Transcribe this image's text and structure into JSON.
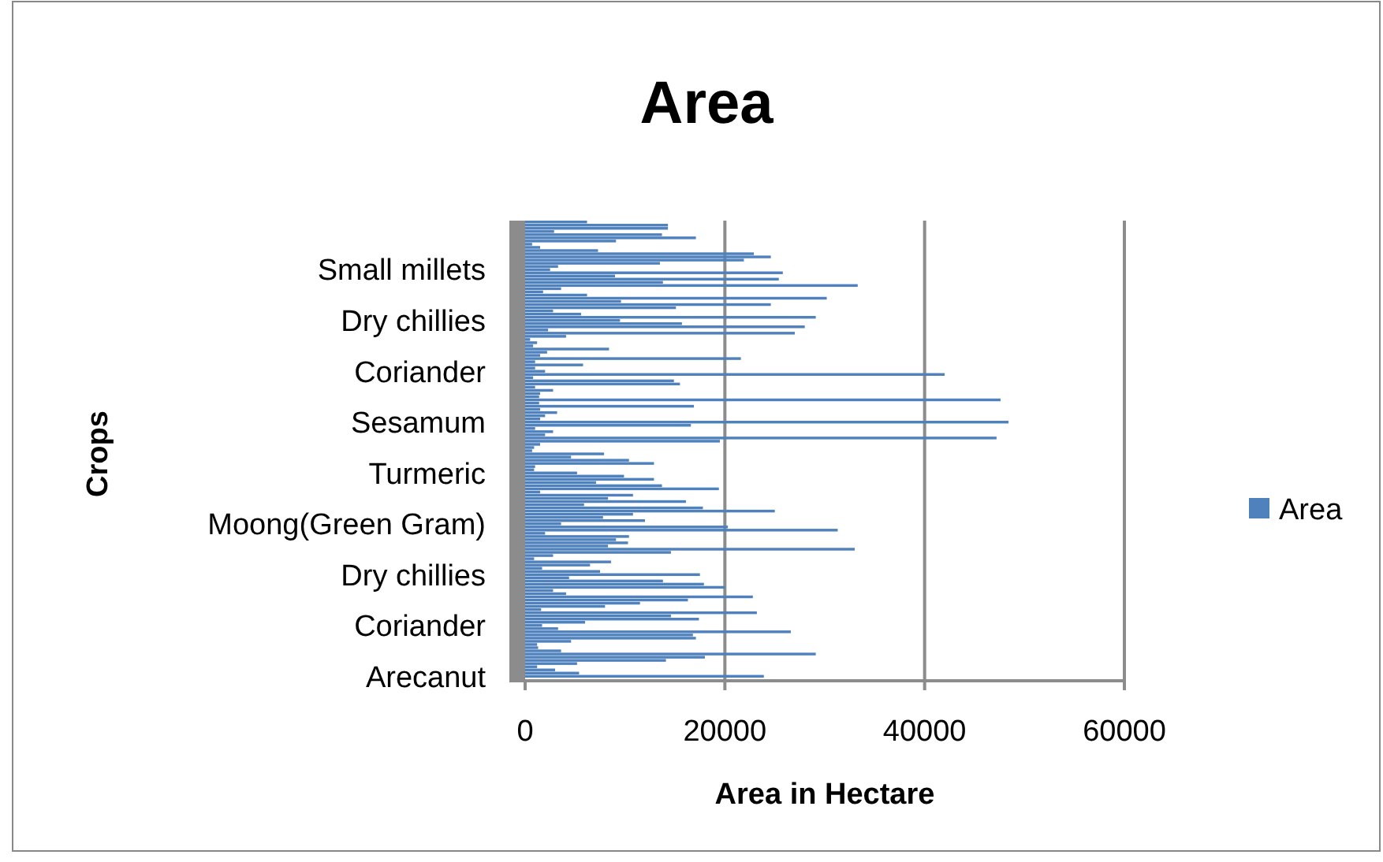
{
  "chart_data": {
    "type": "bar",
    "orientation": "horizontal",
    "title": "Area",
    "xlabel": "Area in Hectare",
    "ylabel": "Crops",
    "categories": [
      null,
      null,
      null,
      null,
      null,
      null,
      null,
      null,
      null,
      null,
      null,
      null,
      null,
      null,
      null,
      "Small millets",
      null,
      null,
      null,
      null,
      null,
      null,
      null,
      null,
      null,
      null,
      null,
      null,
      null,
      null,
      null,
      "Dry chillies",
      null,
      null,
      null,
      null,
      null,
      null,
      null,
      null,
      null,
      null,
      null,
      null,
      null,
      null,
      null,
      "Coriander",
      null,
      null,
      null,
      null,
      null,
      null,
      null,
      null,
      null,
      null,
      null,
      null,
      null,
      null,
      null,
      "Sesamum",
      null,
      null,
      null,
      null,
      null,
      null,
      null,
      null,
      null,
      null,
      null,
      null,
      null,
      null,
      null,
      "Turmeric",
      null,
      null,
      null,
      null,
      null,
      null,
      null,
      null,
      null,
      null,
      null,
      null,
      null,
      null,
      null,
      "Moong(Green Gram)",
      null,
      null,
      null,
      null,
      null,
      null,
      null,
      null,
      null,
      null,
      null,
      null,
      null,
      null,
      null,
      "Dry chillies",
      null,
      null,
      null,
      null,
      null,
      null,
      null,
      null,
      null,
      null,
      null,
      null,
      null,
      null,
      null,
      "Coriander",
      null,
      null,
      null,
      null,
      null,
      null,
      null,
      null,
      null,
      null,
      null,
      null,
      null,
      null,
      null,
      "Arecanut"
    ],
    "series": [
      {
        "name": "Area",
        "color": "#4f81bd",
        "values": [
          6200,
          14300,
          14300,
          2900,
          13700,
          17100,
          9100,
          700,
          1500,
          7300,
          22900,
          24600,
          21900,
          13500,
          3300,
          2500,
          25800,
          9000,
          25400,
          13800,
          33300,
          3600,
          1800,
          6200,
          30200,
          9600,
          24600,
          15100,
          2800,
          5600,
          29100,
          9500,
          15700,
          28000,
          2300,
          27000,
          4100,
          500,
          1200,
          800,
          8400,
          2200,
          1500,
          21600,
          1000,
          5800,
          1000,
          2000,
          42000,
          800,
          14900,
          15500,
          1000,
          2800,
          1500,
          1400,
          47600,
          1400,
          16900,
          1500,
          3200,
          2000,
          1500,
          48400,
          16600,
          1000,
          2800,
          2000,
          47200,
          19500,
          1500,
          900,
          700,
          7900,
          4600,
          10400,
          12900,
          1000,
          900,
          5200,
          9900,
          12900,
          7100,
          13700,
          19400,
          1500,
          10800,
          8300,
          16100,
          5900,
          17800,
          25000,
          10800,
          7800,
          12000,
          3600,
          20300,
          31300,
          2000,
          10400,
          9100,
          10300,
          8300,
          33000,
          14600,
          2800,
          900,
          8600,
          6500,
          1700,
          7500,
          17500,
          4400,
          13800,
          17900,
          20000,
          2800,
          4100,
          22800,
          16300,
          11500,
          8000,
          1600,
          23200,
          14600,
          17400,
          6000,
          1700,
          3300,
          26600,
          16800,
          17100,
          4600,
          1200,
          1300,
          3600,
          29100,
          18000,
          14100,
          5200,
          1200,
          3000,
          5400,
          23900
        ]
      }
    ],
    "xlim": [
      0,
      60000
    ],
    "xticks": [
      0,
      20000,
      40000,
      60000
    ],
    "grid": "x",
    "legend": "right"
  }
}
